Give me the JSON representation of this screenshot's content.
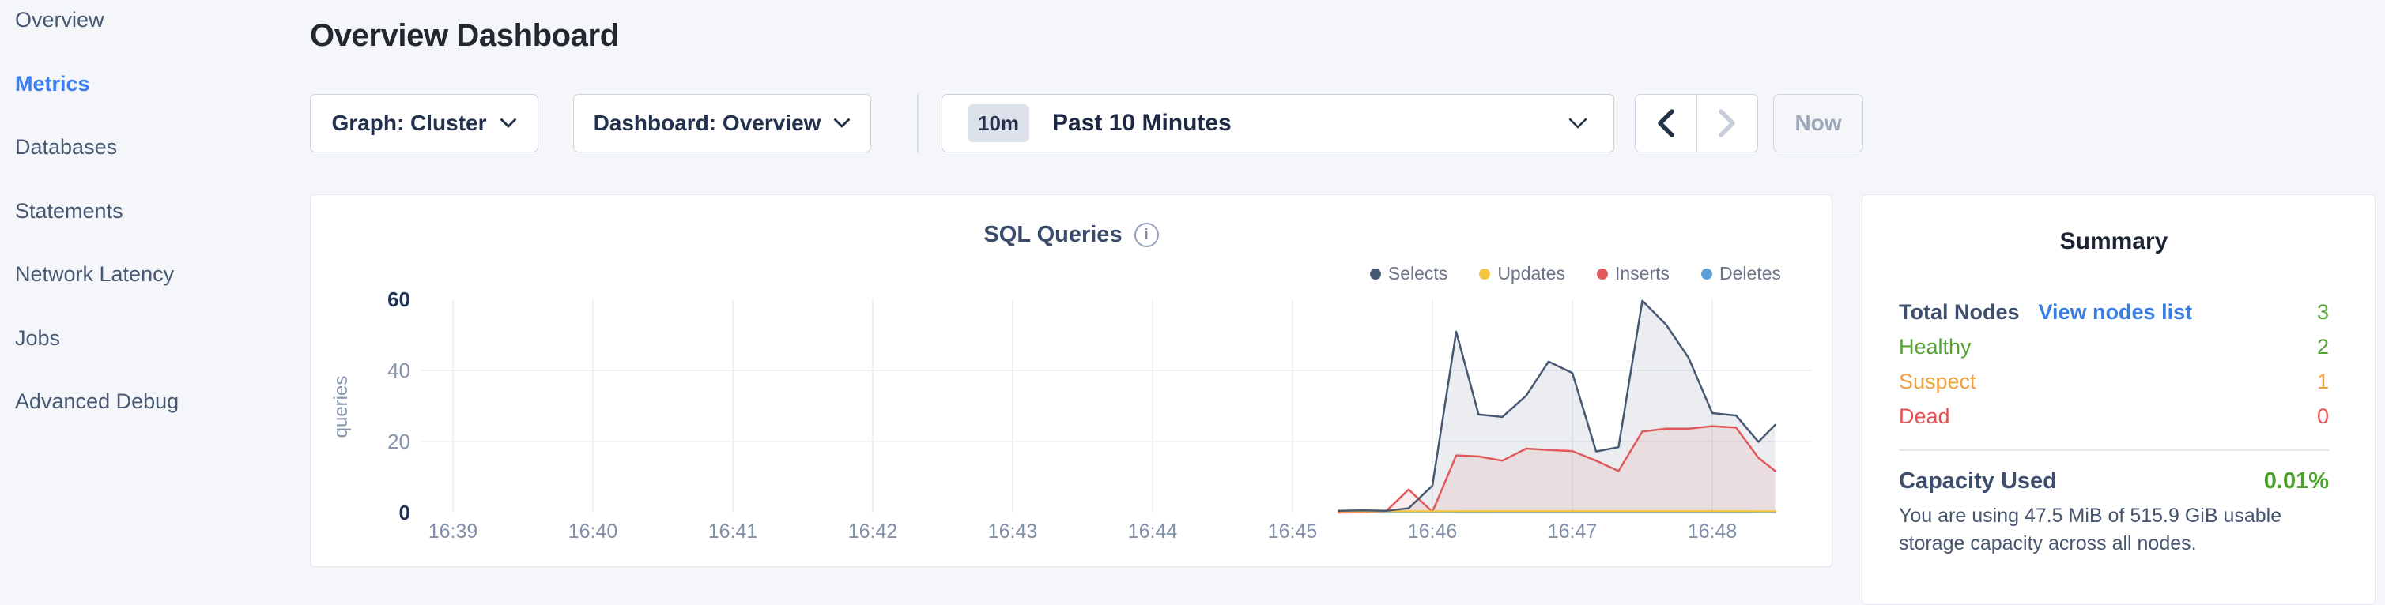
{
  "sidebar": {
    "items": [
      {
        "label": "Overview",
        "active": false
      },
      {
        "label": "Metrics",
        "active": true
      },
      {
        "label": "Databases",
        "active": false
      },
      {
        "label": "Statements",
        "active": false
      },
      {
        "label": "Network Latency",
        "active": false
      },
      {
        "label": "Jobs",
        "active": false
      },
      {
        "label": "Advanced Debug",
        "active": false
      }
    ],
    "active_color": "#3a7ef2",
    "item_color": "#475872"
  },
  "header": {
    "title": "Overview Dashboard"
  },
  "toolbar": {
    "graph_label": "Graph: Cluster",
    "dashboard_label": "Dashboard: Overview",
    "time_badge": "10m",
    "time_label": "Past 10 Minutes",
    "now_label": "Now",
    "prev_enabled_color": "#243349",
    "next_disabled_color": "#c6cdd8"
  },
  "chart_data": {
    "type": "area",
    "title": "SQL Queries",
    "info_glyph": "i",
    "xlabel": "",
    "ylabel": "queries",
    "x_ticks": [
      "16:39",
      "16:40",
      "16:41",
      "16:42",
      "16:43",
      "16:44",
      "16:45",
      "16:46",
      "16:47",
      "16:48"
    ],
    "y_ticks": [
      0,
      20,
      40,
      60
    ],
    "ylim": [
      0,
      60
    ],
    "x_minutes_domain": [
      0,
      9.71
    ],
    "grid": true,
    "legend_position": "top-right",
    "series": [
      {
        "name": "Selects",
        "color": "#475872",
        "fill_opacity": 0.11,
        "points": [
          [
            6.33,
            0.5
          ],
          [
            6.5,
            0.6
          ],
          [
            6.67,
            0.5
          ],
          [
            6.83,
            1.2
          ],
          [
            7.0,
            7.6
          ],
          [
            7.17,
            50.9
          ],
          [
            7.33,
            27.6
          ],
          [
            7.5,
            26.9
          ],
          [
            7.67,
            32.9
          ],
          [
            7.83,
            42.5
          ],
          [
            8.0,
            39.3
          ],
          [
            8.17,
            17.2
          ],
          [
            8.33,
            18.4
          ],
          [
            8.5,
            59.6
          ],
          [
            8.67,
            52.9
          ],
          [
            8.83,
            43.6
          ],
          [
            9.0,
            28.0
          ],
          [
            9.17,
            27.3
          ],
          [
            9.33,
            19.9
          ],
          [
            9.45,
            24.7
          ]
        ]
      },
      {
        "name": "Updates",
        "color": "#f5c542",
        "fill_opacity": 0,
        "points": [
          [
            6.33,
            0.35
          ],
          [
            7.0,
            0.35
          ],
          [
            8.0,
            0.4
          ],
          [
            9.0,
            0.4
          ],
          [
            9.45,
            0.35
          ]
        ]
      },
      {
        "name": "Inserts",
        "color": "#e2595c",
        "fill_opacity": 0.1,
        "points": [
          [
            6.33,
            0.0
          ],
          [
            6.5,
            0.1
          ],
          [
            6.67,
            0.4
          ],
          [
            6.83,
            6.5
          ],
          [
            7.0,
            0.2
          ],
          [
            7.17,
            16.1
          ],
          [
            7.33,
            15.8
          ],
          [
            7.5,
            14.6
          ],
          [
            7.67,
            18.0
          ],
          [
            7.83,
            17.6
          ],
          [
            8.0,
            17.3
          ],
          [
            8.17,
            14.6
          ],
          [
            8.33,
            11.7
          ],
          [
            8.5,
            22.8
          ],
          [
            8.67,
            23.6
          ],
          [
            8.83,
            23.6
          ],
          [
            9.0,
            24.3
          ],
          [
            9.17,
            23.9
          ],
          [
            9.33,
            15.4
          ],
          [
            9.45,
            11.7
          ]
        ]
      },
      {
        "name": "Deletes",
        "color": "#5b9fd6",
        "fill_opacity": 0,
        "points": [
          [
            6.33,
            0.15
          ],
          [
            7.5,
            0.15
          ],
          [
            9.45,
            0.15
          ]
        ]
      }
    ]
  },
  "summary": {
    "title": "Summary",
    "rows": [
      {
        "label": "Total Nodes",
        "label_bold": true,
        "label_color": "#3e4f6e",
        "link": "View nodes list",
        "value": "3",
        "value_color": "#54a233"
      },
      {
        "label": "Healthy",
        "label_bold": false,
        "label_color": "#54a233",
        "link": "",
        "value": "2",
        "value_color": "#54a233"
      },
      {
        "label": "Suspect",
        "label_bold": false,
        "label_color": "#efa23f",
        "link": "",
        "value": "1",
        "value_color": "#efa23f"
      },
      {
        "label": "Dead",
        "label_bold": false,
        "label_color": "#e8504f",
        "link": "",
        "value": "0",
        "value_color": "#e8504f"
      }
    ],
    "capacity_label": "Capacity Used",
    "capacity_value": "0.01%",
    "capacity_value_color": "#4ea02c",
    "capacity_description": "You are using 47.5 MiB of 515.9 GiB usable storage capacity across all nodes."
  }
}
